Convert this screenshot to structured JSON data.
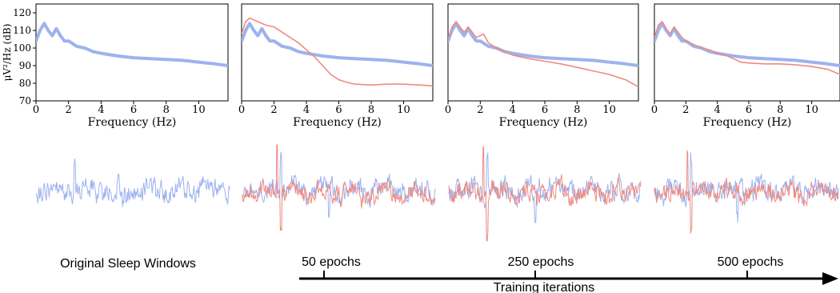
{
  "colors": {
    "original": "#9db3ee",
    "generated": "#f08a80",
    "axis": "#000000"
  },
  "chart_data": [
    {
      "type": "line",
      "xlabel": "Frequency (Hz)",
      "ylabel": "μV²/Hz (dB)",
      "xlim": [
        0,
        11.8
      ],
      "ylim": [
        70,
        125
      ],
      "xticks": [
        "0",
        "2",
        "4",
        "6",
        "8",
        "10"
      ],
      "yticks": [
        "70",
        "80",
        "90",
        "100",
        "110",
        "120"
      ],
      "series": [
        {
          "role": "original",
          "x": [
            0,
            0.25,
            0.5,
            0.75,
            1,
            1.25,
            1.5,
            1.75,
            2,
            2.5,
            3,
            3.5,
            4,
            5,
            6,
            7,
            8,
            9,
            10,
            11,
            11.8
          ],
          "y": [
            104,
            110,
            114,
            110,
            107,
            111,
            107,
            104,
            104,
            101,
            100,
            98,
            97,
            95.5,
            94.5,
            94,
            93.5,
            93,
            92,
            91,
            90
          ]
        }
      ]
    },
    {
      "type": "line",
      "xlabel": "Frequency (Hz)",
      "xlim": [
        0,
        11.8
      ],
      "ylim": [
        70,
        125
      ],
      "xticks": [
        "0",
        "2",
        "4",
        "6",
        "8",
        "10"
      ],
      "series": [
        {
          "role": "original",
          "x": [
            0,
            0.25,
            0.5,
            0.75,
            1,
            1.25,
            1.5,
            1.75,
            2,
            2.5,
            3,
            3.5,
            4,
            5,
            6,
            7,
            8,
            9,
            10,
            11,
            11.8
          ],
          "y": [
            104,
            110,
            114,
            110,
            107,
            111,
            107,
            104,
            104,
            101,
            100,
            98,
            97,
            95.5,
            94.5,
            94,
            93.5,
            93,
            92,
            91,
            90
          ]
        },
        {
          "role": "generated",
          "x": [
            0,
            0.25,
            0.5,
            0.75,
            1,
            1.5,
            2,
            2.5,
            3,
            3.5,
            4,
            4.5,
            5,
            5.5,
            6,
            6.5,
            7,
            8,
            9,
            10,
            11,
            11.8
          ],
          "y": [
            108,
            115,
            117,
            116,
            115,
            113,
            112,
            109,
            106,
            103,
            99,
            95,
            90,
            85,
            82,
            80.5,
            79.5,
            79,
            79.5,
            79.5,
            79,
            78.5
          ]
        }
      ]
    },
    {
      "type": "line",
      "xlabel": "Frequency (Hz)",
      "xlim": [
        0,
        11.8
      ],
      "ylim": [
        70,
        125
      ],
      "xticks": [
        "0",
        "2",
        "4",
        "6",
        "8",
        "10"
      ],
      "series": [
        {
          "role": "original",
          "x": [
            0,
            0.25,
            0.5,
            0.75,
            1,
            1.25,
            1.5,
            1.75,
            2,
            2.5,
            3,
            3.5,
            4,
            5,
            6,
            7,
            8,
            9,
            10,
            11,
            11.8
          ],
          "y": [
            104,
            110,
            114,
            110,
            107,
            111,
            107,
            104,
            104,
            101,
            100,
            98,
            97,
            95.5,
            94.5,
            94,
            93.5,
            93,
            92,
            91,
            90
          ]
        },
        {
          "role": "generated",
          "x": [
            0,
            0.25,
            0.5,
            0.75,
            1,
            1.25,
            1.5,
            1.75,
            2,
            2.2,
            2.5,
            3,
            3.5,
            4,
            5,
            6,
            7,
            8,
            9,
            10,
            11,
            11.8
          ],
          "y": [
            105,
            112,
            115,
            112,
            109,
            112,
            109,
            106,
            107,
            108,
            103,
            100,
            98,
            96,
            94,
            92.5,
            91,
            89,
            87,
            85,
            82,
            78
          ]
        }
      ]
    },
    {
      "type": "line",
      "xlabel": "Frequency (Hz)",
      "xlim": [
        0,
        11.8
      ],
      "ylim": [
        70,
        125
      ],
      "xticks": [
        "0",
        "2",
        "4",
        "6",
        "8",
        "10"
      ],
      "series": [
        {
          "role": "original",
          "x": [
            0,
            0.25,
            0.5,
            0.75,
            1,
            1.25,
            1.5,
            1.75,
            2,
            2.5,
            3,
            3.5,
            4,
            5,
            6,
            7,
            8,
            9,
            10,
            11,
            11.8
          ],
          "y": [
            104,
            110,
            114,
            110,
            107,
            111,
            107,
            104,
            104,
            101,
            100,
            98,
            97,
            95.5,
            94.5,
            94,
            93.5,
            93,
            92,
            91,
            90
          ]
        },
        {
          "role": "generated",
          "x": [
            0,
            0.25,
            0.5,
            0.75,
            1,
            1.25,
            1.5,
            1.75,
            2,
            2.5,
            3,
            3.5,
            4,
            4.5,
            5,
            5.5,
            6,
            7,
            8,
            9,
            10,
            11,
            11.8
          ],
          "y": [
            106,
            113,
            115,
            111,
            108,
            112,
            109,
            106,
            104,
            102,
            100,
            99,
            97,
            96,
            94,
            92,
            91.5,
            91,
            91,
            90.5,
            89.5,
            88,
            85
          ]
        }
      ]
    }
  ],
  "captions": {
    "original": "Original Sleep Windows"
  },
  "timeline": {
    "axis_label": "Training iterations",
    "milestones": [
      "50 epochs",
      "250 epochs",
      "500 epochs"
    ]
  }
}
